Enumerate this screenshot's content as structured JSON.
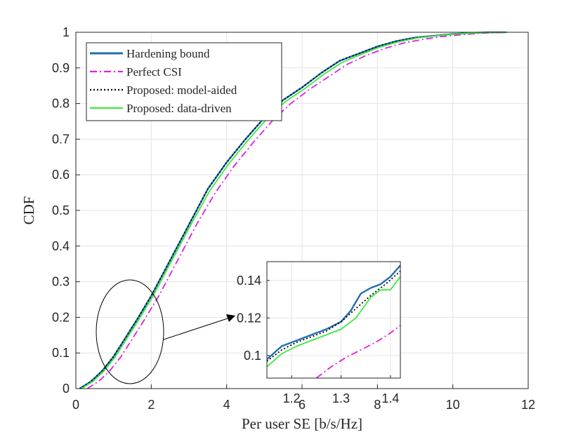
{
  "chart_data": {
    "type": "line",
    "title": "",
    "xlabel": "Per user SE [b/s/Hz]",
    "ylabel": "CDF",
    "xlim": [
      0,
      12
    ],
    "ylim": [
      0,
      1
    ],
    "xticks": [
      "0",
      "2",
      "4",
      "6",
      "8",
      "10",
      "12"
    ],
    "yticks": [
      "0",
      "0.1",
      "0.2",
      "0.3",
      "0.4",
      "0.5",
      "0.6",
      "0.7",
      "0.8",
      "0.9",
      "1"
    ],
    "grid": true,
    "legend_position": "top-left",
    "series": [
      {
        "name": "Hardening bound",
        "color": "#1f6fb4",
        "style": "solid",
        "x": [
          0.1,
          0.4,
          0.7,
          1.0,
          1.3,
          1.6,
          2.0,
          2.5,
          3.0,
          3.5,
          4.0,
          4.5,
          5.0,
          5.5,
          6.0,
          6.5,
          7.0,
          7.5,
          8.0,
          8.5,
          9.0,
          9.5,
          10.0,
          10.5,
          11.0,
          11.4
        ],
        "y": [
          0.0,
          0.02,
          0.05,
          0.09,
          0.14,
          0.19,
          0.26,
          0.36,
          0.46,
          0.56,
          0.635,
          0.7,
          0.76,
          0.81,
          0.845,
          0.885,
          0.92,
          0.94,
          0.96,
          0.975,
          0.985,
          0.99,
          0.995,
          0.998,
          1.0,
          1.0
        ]
      },
      {
        "name": "Perfect CSI",
        "color": "#e21fe3",
        "style": "dashdot",
        "x": [
          0.3,
          0.6,
          0.9,
          1.2,
          1.5,
          1.8,
          2.2,
          2.7,
          3.2,
          3.7,
          4.2,
          4.7,
          5.2,
          5.7,
          6.2,
          6.7,
          7.2,
          7.7,
          8.2,
          8.7,
          9.2,
          9.7,
          10.2,
          10.7,
          11.1,
          11.5
        ],
        "y": [
          0.0,
          0.02,
          0.05,
          0.09,
          0.14,
          0.19,
          0.26,
          0.36,
          0.46,
          0.55,
          0.625,
          0.69,
          0.75,
          0.8,
          0.84,
          0.875,
          0.91,
          0.935,
          0.955,
          0.97,
          0.98,
          0.988,
          0.993,
          0.997,
          0.999,
          1.0
        ]
      },
      {
        "name": "Proposed: model-aided",
        "color": "#000000",
        "style": "dotted",
        "x": [
          0.1,
          0.4,
          0.7,
          1.0,
          1.3,
          1.6,
          2.0,
          2.5,
          3.0,
          3.5,
          4.0,
          4.5,
          5.0,
          5.5,
          6.0,
          6.5,
          7.0,
          7.5,
          8.0,
          8.5,
          9.0,
          9.5,
          10.0,
          10.5,
          11.0,
          11.4
        ],
        "y": [
          0.0,
          0.02,
          0.05,
          0.09,
          0.14,
          0.19,
          0.26,
          0.36,
          0.46,
          0.56,
          0.635,
          0.7,
          0.76,
          0.81,
          0.845,
          0.885,
          0.92,
          0.94,
          0.96,
          0.975,
          0.985,
          0.99,
          0.995,
          0.998,
          1.0,
          1.0
        ]
      },
      {
        "name": "Proposed: data-driven",
        "color": "#3ee83e",
        "style": "solid",
        "x": [
          0.15,
          0.45,
          0.75,
          1.05,
          1.35,
          1.65,
          2.05,
          2.55,
          3.05,
          3.55,
          4.05,
          4.55,
          5.05,
          5.55,
          6.05,
          6.55,
          7.05,
          7.55,
          8.05,
          8.55,
          9.05,
          9.55,
          10.05,
          10.55,
          11.05,
          11.45
        ],
        "y": [
          0.0,
          0.02,
          0.05,
          0.09,
          0.14,
          0.19,
          0.26,
          0.36,
          0.46,
          0.555,
          0.63,
          0.695,
          0.755,
          0.805,
          0.84,
          0.88,
          0.915,
          0.937,
          0.958,
          0.973,
          0.984,
          0.99,
          0.995,
          0.998,
          1.0,
          1.0
        ]
      }
    ],
    "inset": {
      "xlim": [
        1.15,
        1.42
      ],
      "ylim": [
        0.088,
        0.15
      ],
      "xticks": [
        "1.2",
        "1.3",
        "1.4"
      ],
      "yticks": [
        "0.1",
        "0.12",
        "0.14"
      ],
      "series": [
        {
          "name": "Hardening bound",
          "x": [
            1.15,
            1.18,
            1.21,
            1.24,
            1.27,
            1.3,
            1.32,
            1.34,
            1.36,
            1.38,
            1.4,
            1.42
          ],
          "y": [
            0.098,
            0.105,
            0.108,
            0.111,
            0.114,
            0.118,
            0.124,
            0.133,
            0.136,
            0.138,
            0.142,
            0.148
          ]
        },
        {
          "name": "Perfect CSI",
          "x": [
            1.25,
            1.28,
            1.31,
            1.34,
            1.37,
            1.4,
            1.42
          ],
          "y": [
            0.088,
            0.094,
            0.099,
            0.103,
            0.107,
            0.112,
            0.116
          ]
        },
        {
          "name": "Proposed: model-aided",
          "x": [
            1.15,
            1.18,
            1.21,
            1.24,
            1.27,
            1.3,
            1.33,
            1.36,
            1.39,
            1.42
          ],
          "y": [
            0.097,
            0.103,
            0.107,
            0.11,
            0.113,
            0.118,
            0.125,
            0.132,
            0.138,
            0.145
          ]
        },
        {
          "name": "Proposed: data-driven",
          "x": [
            1.15,
            1.18,
            1.21,
            1.24,
            1.27,
            1.3,
            1.33,
            1.36,
            1.38,
            1.4,
            1.42
          ],
          "y": [
            0.094,
            0.101,
            0.105,
            0.108,
            0.111,
            0.114,
            0.12,
            0.131,
            0.135,
            0.135,
            0.142
          ]
        }
      ]
    }
  }
}
